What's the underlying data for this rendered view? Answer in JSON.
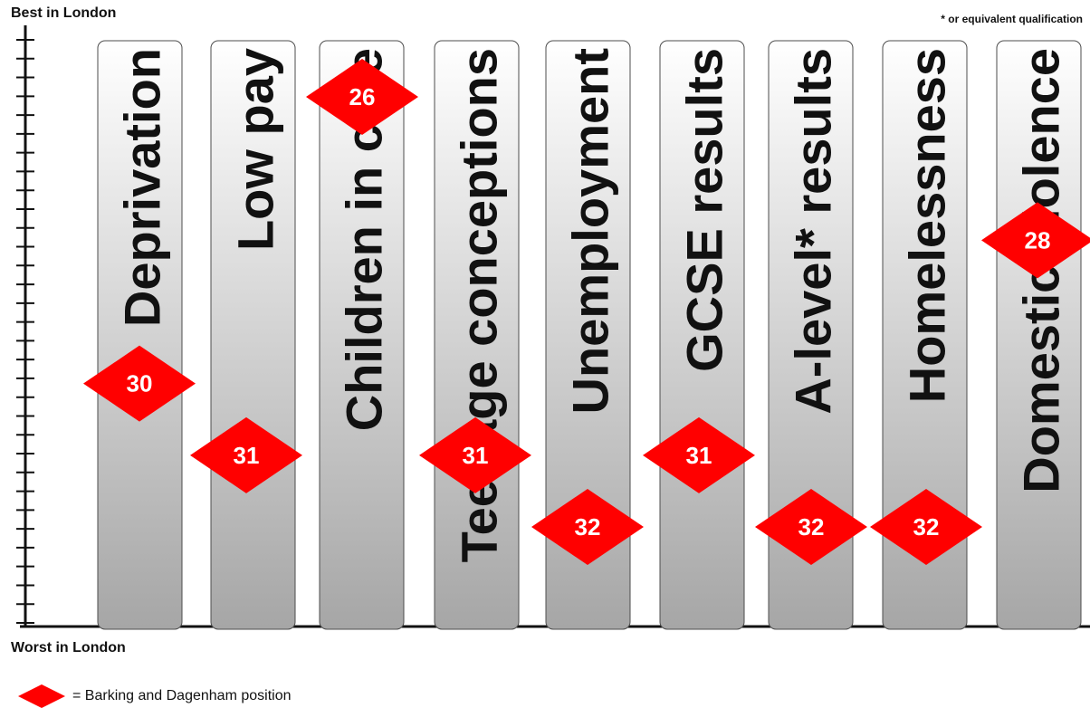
{
  "header": {
    "best_label": "Best in London",
    "worst_label": "Worst in London",
    "footnote": "* or equivalent qualification"
  },
  "legend": {
    "marker_color": "#ff0000",
    "label": "= Barking and Dagenham position"
  },
  "chart_data": {
    "type": "bar",
    "orientation": "vertical",
    "y_axis": {
      "top": "Best in London",
      "bottom": "Worst in London",
      "rank_range": [
        1,
        32
      ],
      "ticks": 32
    },
    "categories": [
      "Deprivation",
      "Low pay",
      "Children in care",
      "Teenage conceptions",
      "Unemployment",
      "GCSE results",
      "A-level* results",
      "Homelessness",
      "Domestic violence"
    ],
    "values": [
      30,
      31,
      26,
      31,
      32,
      31,
      32,
      32,
      28
    ],
    "value_labels": [
      "30",
      "31",
      "26",
      "31",
      "32",
      "31",
      "32",
      "32",
      "28"
    ],
    "colors": {
      "bar_top": "#ffffff",
      "bar_bottom": "#a6a6a6",
      "marker": "#ff0000"
    }
  }
}
